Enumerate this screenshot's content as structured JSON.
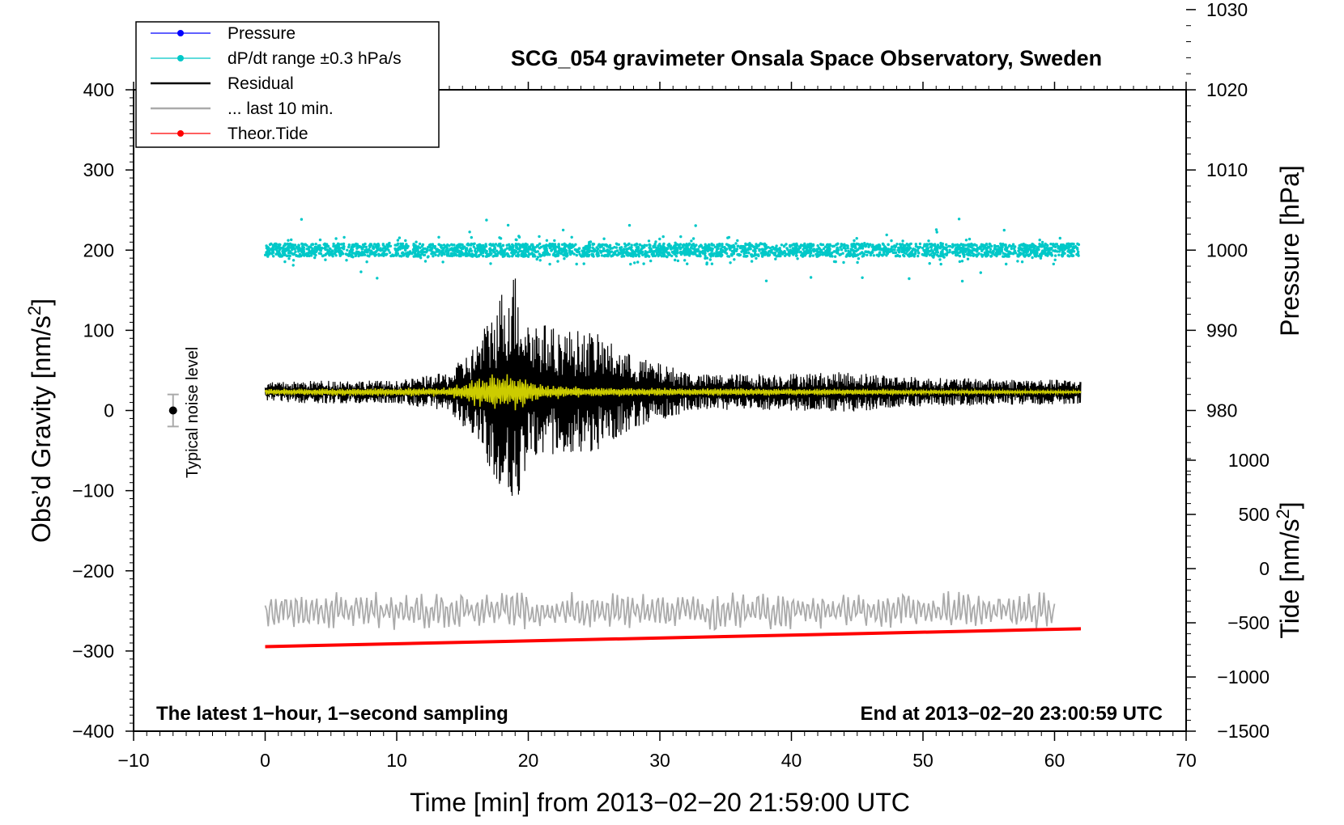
{
  "chart_data": {
    "type": "line",
    "title": "SCG_054 gravimeter Onsala Space Observatory, Sweden",
    "xlabel": "Time [min] from 2013−02−20 21:59:00 UTC",
    "ylabel_left": "Obs’d Gravity [nm/s²]",
    "ylabel_left_main": "Obs’d Gravity [nm/s",
    "ylabel_left_sup": "2",
    "ylabel_left_end": "]",
    "ylabel_right_pressure": "Pressure [hPa]",
    "ylabel_right_tide": "Tide [nm/s²]",
    "ylabel_right_tide_main": "Tide [nm/s",
    "ylabel_right_tide_sup": "2",
    "ylabel_right_tide_end": "]",
    "xlim": [
      -10,
      70
    ],
    "ylim_left": [
      -400,
      400
    ],
    "pressure_axis_range": [
      970,
      1030
    ],
    "tide_axis_range": [
      -1500,
      1000
    ],
    "x_ticks": [
      "−10",
      "0",
      "10",
      "20",
      "30",
      "40",
      "50",
      "60",
      "70"
    ],
    "x_tick_values": [
      -10,
      0,
      10,
      20,
      30,
      40,
      50,
      60,
      70
    ],
    "y_left_ticks": [
      "400",
      "300",
      "200",
      "100",
      "0",
      "−100",
      "−200",
      "−300",
      "−400"
    ],
    "y_left_tick_values": [
      400,
      300,
      200,
      100,
      0,
      -100,
      -200,
      -300,
      -400
    ],
    "pressure_ticks": [
      "1030",
      "1020",
      "1010",
      "1000",
      "990",
      "980"
    ],
    "pressure_tick_values": [
      1030,
      1020,
      1010,
      1000,
      990,
      980
    ],
    "tide_ticks": [
      "1000",
      "500",
      "0",
      "−500",
      "−1000",
      "−1500"
    ],
    "tide_tick_values": [
      1000,
      500,
      0,
      -500,
      -1000,
      -1500
    ],
    "legend": [
      {
        "label": "Pressure",
        "color": "#0000ff",
        "style": "line-dot"
      },
      {
        "label": "dP/dt range ±0.3 hPa/s",
        "color": "#00c8c8",
        "style": "line-dot"
      },
      {
        "label": "Residual",
        "color": "#000000",
        "style": "line"
      },
      {
        "label": "... last 10 min.",
        "color": "#aaaaaa",
        "style": "line"
      },
      {
        "label": "Theor.Tide",
        "color": "#ff0000",
        "style": "line-dot"
      }
    ],
    "noise_label": "Typical noise level",
    "noise_bar": {
      "x": -7,
      "center": 0,
      "low": -20,
      "high": 20
    },
    "note_left": "The latest 1−hour, 1−second sampling",
    "note_right": "End at 2013−02−20 23:00:59 UTC",
    "series": [
      {
        "name": "dP/dt range",
        "color": "#00c8c8",
        "x_range": [
          0,
          62
        ],
        "center": 200,
        "typical_spread": 8,
        "max_spread": 40
      },
      {
        "name": "Residual",
        "color": "#000000",
        "x_range": [
          0,
          62
        ],
        "baseline": 23,
        "envelope": [
          [
            0,
            12
          ],
          [
            5,
            15
          ],
          [
            10,
            14
          ],
          [
            14,
            25
          ],
          [
            16,
            60
          ],
          [
            17.5,
            110
          ],
          [
            18.8,
            160
          ],
          [
            20,
            95
          ],
          [
            22,
            80
          ],
          [
            25,
            75
          ],
          [
            28,
            45
          ],
          [
            33,
            22
          ],
          [
            45,
            25
          ],
          [
            50,
            18
          ],
          [
            62,
            15
          ]
        ],
        "max": 187,
        "min": -128
      },
      {
        "name": "Residual filtered",
        "color": "#cccc00",
        "x_range": [
          0,
          62
        ],
        "baseline": 23,
        "envelope": [
          [
            0,
            4
          ],
          [
            14,
            6
          ],
          [
            16.5,
            22
          ],
          [
            18.8,
            25
          ],
          [
            21,
            10
          ],
          [
            25,
            6
          ],
          [
            62,
            2
          ]
        ]
      },
      {
        "name": "... last 10 min.",
        "color": "#aaaaaa",
        "x_range": [
          0,
          60
        ],
        "center": -250,
        "amplitude": 20
      },
      {
        "name": "Theor.Tide",
        "color": "#ff0000",
        "x": [
          0,
          62
        ],
        "y_tide": [
          -720,
          -555
        ]
      }
    ]
  }
}
